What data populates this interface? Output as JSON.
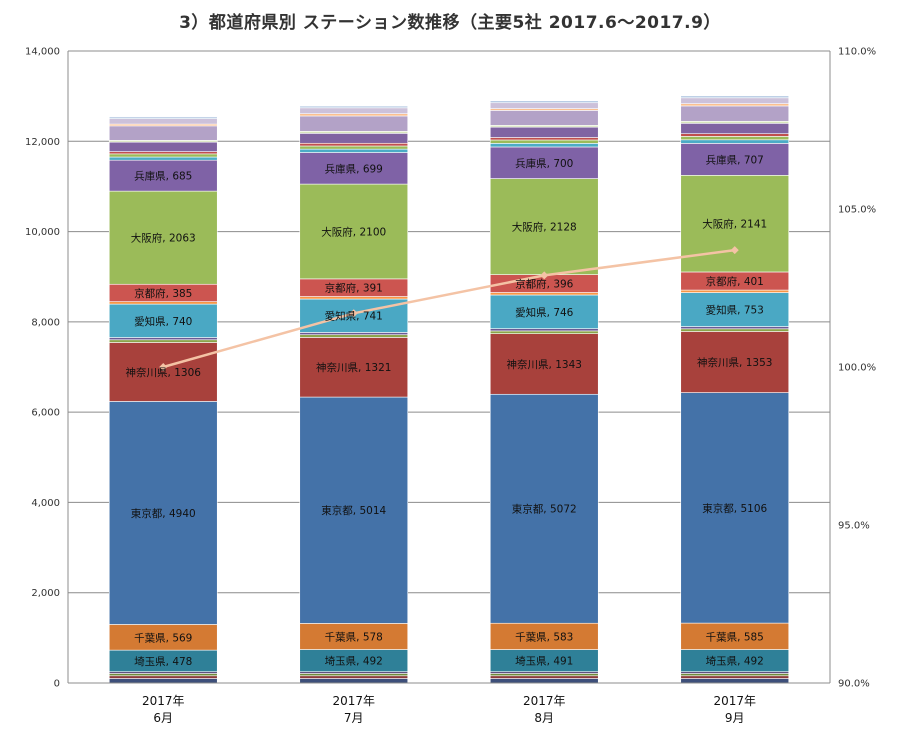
{
  "chart_data": {
    "type": "bar",
    "stacked": true,
    "title": "3）都道府県別 ステーション数推移（主要5社 2017.6～2017.9）",
    "categories": [
      [
        "2017年",
        "6月"
      ],
      [
        "2017年",
        "7月"
      ],
      [
        "2017年",
        "8月"
      ],
      [
        "2017年",
        "9月"
      ]
    ],
    "ylim": [
      0,
      14000
    ],
    "yticks": [
      "0",
      "2,000",
      "4,000",
      "6,000",
      "8,000",
      "10,000",
      "12,000",
      "14,000"
    ],
    "y2lim": [
      90,
      110
    ],
    "y2ticks": [
      "90.0%",
      "95.0%",
      "100.0%",
      "105.0%",
      "110.0%"
    ],
    "grid": true,
    "colors": {
      "other_bottom": [
        "#3d4f7a",
        "#8b3a3a",
        "#6f8b3a",
        "#5b4b7a"
      ],
      "saitama": "#2f8098",
      "chiba": "#d47a33",
      "tokyo": "#4472a8",
      "kanagawa": "#a8413c",
      "mid": [
        "#8aa44a",
        "#6c5a94"
      ],
      "aichi": "#4aa8c4",
      "kyoto": "#cc5550",
      "osaka": "#9bbb59",
      "hyogo": "#7f62a6",
      "top": [
        "#4bacc6",
        "#f79646",
        "#9bbb59",
        "#c0504d",
        "#8064a2",
        "#4bacc6",
        "#b3a2c7",
        "#b8cce4",
        "#fac090",
        "#d7e4bd",
        "#e6b9b8",
        "#ccc1da"
      ],
      "growth_line": "#f4c3a5"
    },
    "series": [
      {
        "name": "",
        "values": [
          100,
          100,
          100,
          100
        ],
        "label": false,
        "color_key": "other_bottom.0"
      },
      {
        "name": "",
        "values": [
          60,
          60,
          60,
          60
        ],
        "label": false,
        "color_key": "other_bottom.1"
      },
      {
        "name": "",
        "values": [
          50,
          50,
          50,
          50
        ],
        "label": false,
        "color_key": "other_bottom.2"
      },
      {
        "name": "",
        "values": [
          40,
          40,
          40,
          40
        ],
        "label": false,
        "color_key": "other_bottom.3"
      },
      {
        "name": "埼玉県",
        "values": [
          478,
          492,
          491,
          492
        ],
        "label": true,
        "color_key": "saitama"
      },
      {
        "name": "千葉県",
        "values": [
          569,
          578,
          583,
          585
        ],
        "label": true,
        "color_key": "chiba"
      },
      {
        "name": "東京都",
        "values": [
          4940,
          5014,
          5072,
          5106
        ],
        "label": true,
        "color_key": "tokyo"
      },
      {
        "name": "神奈川県",
        "values": [
          1306,
          1321,
          1343,
          1353
        ],
        "label": true,
        "color_key": "kanagawa"
      },
      {
        "name": "",
        "values": [
          60,
          60,
          60,
          60
        ],
        "label": false,
        "color_key": "mid.0"
      },
      {
        "name": "",
        "values": [
          50,
          50,
          50,
          50
        ],
        "label": false,
        "color_key": "mid.1"
      },
      {
        "name": "愛知県",
        "values": [
          740,
          741,
          746,
          753
        ],
        "label": true,
        "color_key": "aichi"
      },
      {
        "name": "",
        "values": [
          55,
          55,
          55,
          55
        ],
        "label": false,
        "color_key": "top.1"
      },
      {
        "name": "京都府",
        "values": [
          385,
          391,
          396,
          401
        ],
        "label": true,
        "color_key": "kyoto"
      },
      {
        "name": "大阪府",
        "values": [
          2063,
          2100,
          2128,
          2141
        ],
        "label": true,
        "color_key": "osaka"
      },
      {
        "name": "兵庫県",
        "values": [
          685,
          699,
          700,
          707
        ],
        "label": true,
        "color_key": "hyogo"
      },
      {
        "name": "",
        "values": [
          70,
          75,
          80,
          80
        ],
        "label": false,
        "color_key": "top.0"
      },
      {
        "name": "",
        "values": [
          70,
          70,
          75,
          75
        ],
        "label": false,
        "color_key": "top.2"
      },
      {
        "name": "",
        "values": [
          50,
          60,
          55,
          60
        ],
        "label": false,
        "color_key": "top.3"
      },
      {
        "name": "",
        "values": [
          210,
          220,
          230,
          230
        ],
        "label": false,
        "color_key": "top.4"
      },
      {
        "name": "",
        "values": [
          40,
          45,
          40,
          45
        ],
        "label": false,
        "color_key": "top.9"
      },
      {
        "name": "",
        "values": [
          320,
          340,
          330,
          340
        ],
        "label": false,
        "color_key": "top.6"
      },
      {
        "name": "",
        "values": [
          40,
          50,
          40,
          50
        ],
        "label": false,
        "color_key": "top.8"
      },
      {
        "name": "",
        "values": [
          120,
          130,
          130,
          130
        ],
        "label": false,
        "color_key": "top.11"
      },
      {
        "name": "",
        "values": [
          40,
          40,
          45,
          45
        ],
        "label": false,
        "color_key": "top.7"
      }
    ],
    "line_series": {
      "name": "",
      "axis": "secondary",
      "values": [
        100.0,
        101.7,
        102.9,
        103.7
      ]
    }
  }
}
